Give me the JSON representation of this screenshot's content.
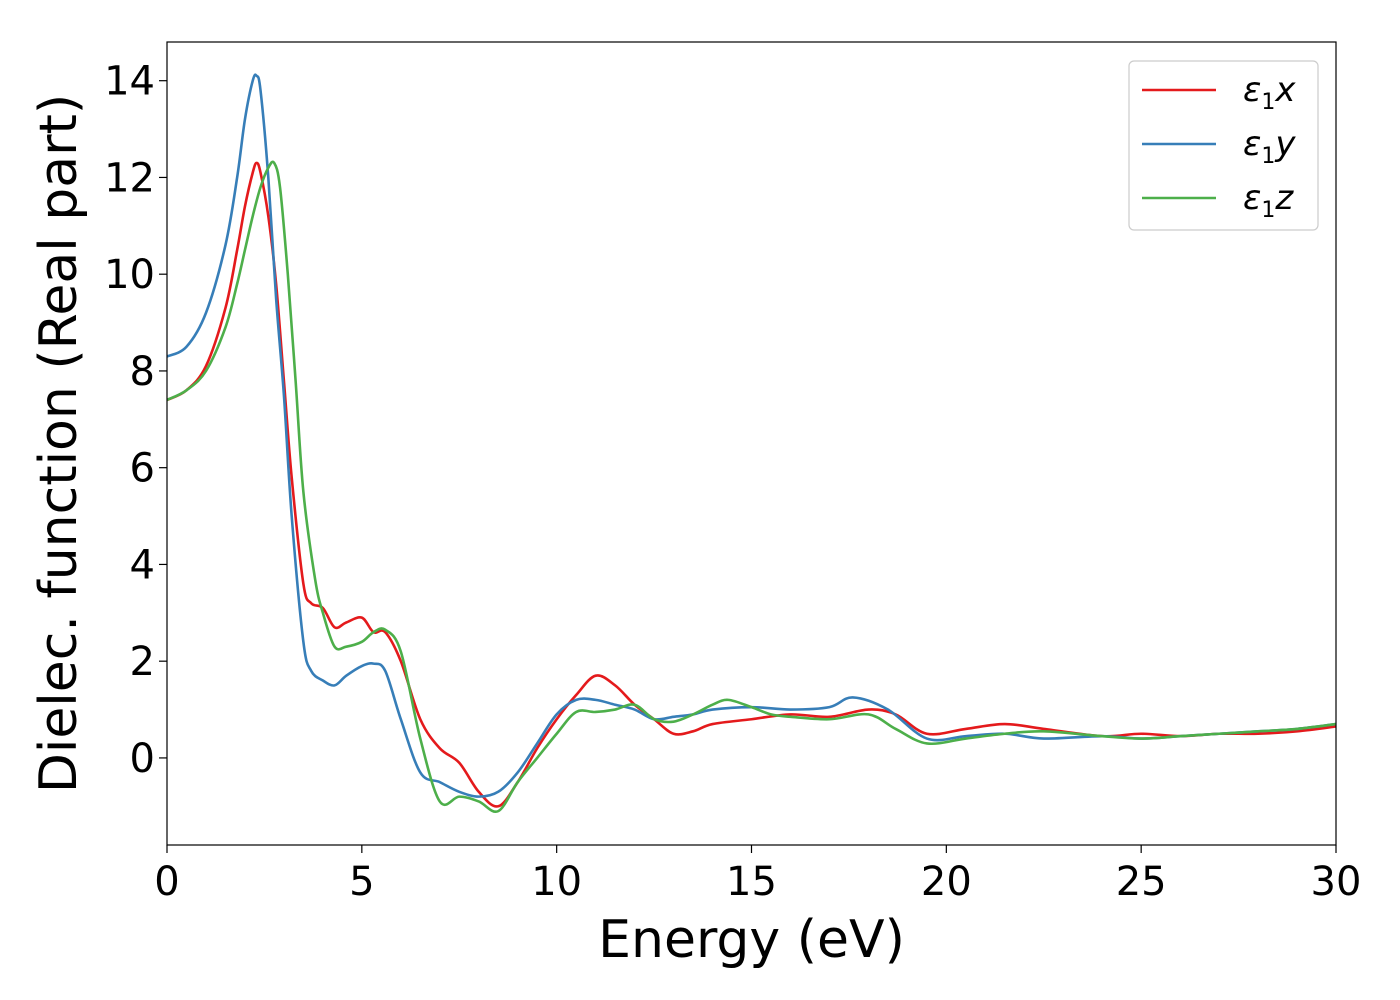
{
  "chart_data": {
    "type": "line",
    "xlabel": "Energy (eV)",
    "ylabel": "Dielec. function (Real part)",
    "xlim": [
      0,
      30
    ],
    "ylim": [
      -1.8,
      14.8
    ],
    "xticks": [
      0,
      5,
      10,
      15,
      20,
      25,
      30
    ],
    "yticks": [
      0,
      2,
      4,
      6,
      8,
      10,
      12,
      14
    ],
    "grid": false,
    "legend_position": "top-right",
    "series": [
      {
        "name": "ε1x",
        "legend_base": "ε",
        "legend_sub": "1",
        "legend_tail": "x",
        "color": "#e41a1c",
        "x": [
          0,
          0.5,
          1.0,
          1.5,
          1.8,
          2.0,
          2.2,
          2.3,
          2.4,
          2.6,
          2.8,
          3.0,
          3.2,
          3.5,
          3.7,
          4.0,
          4.3,
          4.6,
          5.0,
          5.3,
          5.6,
          6.0,
          6.5,
          7.0,
          7.5,
          8.0,
          8.5,
          9.0,
          9.5,
          10.0,
          10.5,
          11.0,
          11.5,
          12.0,
          12.5,
          13.0,
          13.5,
          14.0,
          15.0,
          16.0,
          17.0,
          18.0,
          18.7,
          19.5,
          20.5,
          21.5,
          22.5,
          24.0,
          25.0,
          26.0,
          27.0,
          28.0,
          29.0,
          30.0
        ],
        "y": [
          7.4,
          7.6,
          8.1,
          9.3,
          10.5,
          11.4,
          12.1,
          12.3,
          12.1,
          11.2,
          9.8,
          7.8,
          5.8,
          3.6,
          3.2,
          3.1,
          2.7,
          2.8,
          2.9,
          2.6,
          2.6,
          2.0,
          0.8,
          0.2,
          -0.1,
          -0.7,
          -1.0,
          -0.5,
          0.2,
          0.8,
          1.3,
          1.7,
          1.5,
          1.1,
          0.8,
          0.5,
          0.55,
          0.7,
          0.8,
          0.9,
          0.85,
          1.0,
          0.9,
          0.5,
          0.6,
          0.7,
          0.6,
          0.45,
          0.5,
          0.45,
          0.5,
          0.5,
          0.55,
          0.65
        ]
      },
      {
        "name": "ε1y",
        "legend_base": "ε",
        "legend_sub": "1",
        "legend_tail": "y",
        "color": "#377eb8",
        "x": [
          0,
          0.5,
          1.0,
          1.5,
          1.8,
          2.0,
          2.2,
          2.3,
          2.4,
          2.6,
          2.8,
          3.0,
          3.2,
          3.5,
          3.7,
          4.0,
          4.3,
          4.6,
          5.0,
          5.3,
          5.6,
          6.0,
          6.5,
          7.0,
          7.5,
          8.0,
          8.5,
          9.0,
          9.5,
          10.0,
          10.5,
          11.0,
          11.5,
          12.0,
          12.5,
          13.0,
          13.5,
          14.0,
          15.0,
          16.0,
          17.0,
          17.6,
          18.5,
          19.5,
          20.5,
          21.5,
          22.5,
          24.0,
          25.0,
          26.0,
          27.0,
          28.0,
          29.0,
          30.0
        ],
        "y": [
          8.3,
          8.5,
          9.2,
          10.6,
          12.0,
          13.2,
          14.0,
          14.1,
          13.8,
          12.0,
          9.5,
          7.5,
          5.0,
          2.4,
          1.8,
          1.6,
          1.5,
          1.7,
          1.9,
          1.95,
          1.8,
          0.8,
          -0.3,
          -0.5,
          -0.7,
          -0.8,
          -0.7,
          -0.3,
          0.3,
          0.9,
          1.2,
          1.2,
          1.1,
          1.0,
          0.8,
          0.85,
          0.9,
          1.0,
          1.05,
          1.0,
          1.05,
          1.25,
          1.0,
          0.4,
          0.45,
          0.5,
          0.4,
          0.45,
          0.4,
          0.45,
          0.5,
          0.55,
          0.6,
          0.7
        ]
      },
      {
        "name": "ε1z",
        "legend_base": "ε",
        "legend_sub": "1",
        "legend_tail": "z",
        "color": "#4daf4a",
        "x": [
          0,
          0.5,
          1.0,
          1.5,
          1.8,
          2.0,
          2.2,
          2.4,
          2.6,
          2.75,
          2.9,
          3.1,
          3.3,
          3.5,
          3.8,
          4.0,
          4.3,
          4.6,
          5.0,
          5.3,
          5.6,
          6.0,
          6.5,
          7.0,
          7.5,
          8.0,
          8.5,
          9.0,
          9.5,
          10.0,
          10.5,
          11.0,
          11.5,
          12.0,
          12.5,
          13.0,
          13.5,
          14.0,
          14.4,
          15.0,
          15.5,
          16.0,
          17.0,
          18.0,
          18.7,
          19.5,
          20.5,
          21.5,
          22.5,
          24.0,
          25.0,
          26.0,
          27.0,
          28.0,
          29.0,
          30.0
        ],
        "y": [
          7.4,
          7.6,
          8.0,
          8.9,
          9.8,
          10.5,
          11.2,
          11.8,
          12.2,
          12.3,
          11.8,
          10.0,
          7.8,
          5.5,
          3.7,
          3.0,
          2.3,
          2.3,
          2.4,
          2.6,
          2.65,
          2.2,
          0.4,
          -0.9,
          -0.8,
          -0.9,
          -1.1,
          -0.5,
          0.0,
          0.5,
          0.95,
          0.95,
          1.0,
          1.1,
          0.8,
          0.75,
          0.9,
          1.1,
          1.2,
          1.05,
          0.9,
          0.85,
          0.8,
          0.9,
          0.6,
          0.3,
          0.4,
          0.5,
          0.55,
          0.45,
          0.4,
          0.45,
          0.5,
          0.55,
          0.6,
          0.7
        ]
      }
    ]
  }
}
